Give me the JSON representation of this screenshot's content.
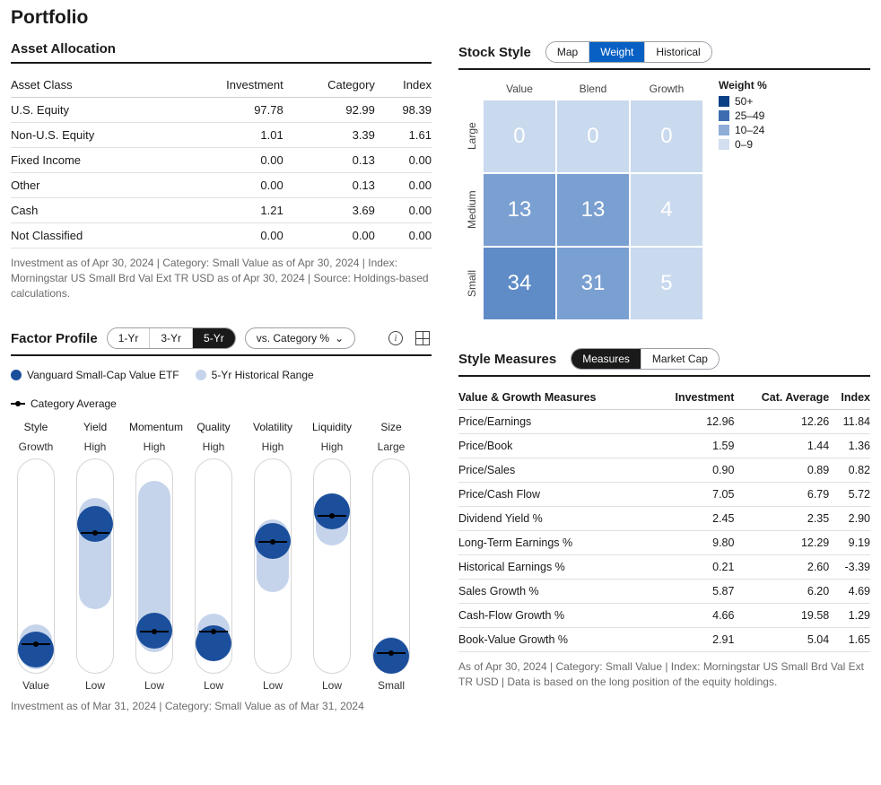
{
  "title": "Portfolio",
  "asset_allocation": {
    "header": "Asset Allocation",
    "columns": [
      "Asset Class",
      "Investment",
      "Category",
      "Index"
    ],
    "rows": [
      {
        "label": "U.S. Equity",
        "inv": "97.78",
        "cat": "92.99",
        "idx": "98.39"
      },
      {
        "label": "Non-U.S. Equity",
        "inv": "1.01",
        "cat": "3.39",
        "idx": "1.61"
      },
      {
        "label": "Fixed Income",
        "inv": "0.00",
        "cat": "0.13",
        "idx": "0.00"
      },
      {
        "label": "Other",
        "inv": "0.00",
        "cat": "0.13",
        "idx": "0.00"
      },
      {
        "label": "Cash",
        "inv": "1.21",
        "cat": "3.69",
        "idx": "0.00"
      },
      {
        "label": "Not Classified",
        "inv": "0.00",
        "cat": "0.00",
        "idx": "0.00"
      }
    ],
    "footnote": "Investment as of Apr 30, 2024 | Category: Small Value as of Apr 30, 2024 | Index: Morningstar US Small Brd Val Ext TR USD as of Apr 30, 2024 | Source: Holdings-based calculations."
  },
  "stock_style": {
    "header": "Stock Style",
    "tabs": [
      "Map",
      "Weight",
      "Historical"
    ],
    "active_tab": 1,
    "col_labels": [
      "Value",
      "Blend",
      "Growth"
    ],
    "row_labels": [
      "Large",
      "Medium",
      "Small"
    ],
    "cells": [
      [
        0,
        0,
        0
      ],
      [
        13,
        13,
        4
      ],
      [
        34,
        31,
        5
      ]
    ],
    "cell_colors": [
      [
        "#c9d9ee",
        "#c9d9ee",
        "#c9d9ee"
      ],
      [
        "#7a9fd1",
        "#7a9fd1",
        "#c9d9ee"
      ],
      [
        "#5f8bc7",
        "#7a9fd1",
        "#c9d9ee"
      ]
    ],
    "legend_title": "Weight %",
    "legend": [
      {
        "label": "50+",
        "color": "#0b3f86"
      },
      {
        "label": "25–49",
        "color": "#3d6cb0"
      },
      {
        "label": "10–24",
        "color": "#8eadd7"
      },
      {
        "label": "0–9",
        "color": "#d2dff0"
      }
    ]
  },
  "factor_profile": {
    "header": "Factor Profile",
    "period_tabs": [
      "1-Yr",
      "3-Yr",
      "5-Yr"
    ],
    "period_active": 2,
    "dropdown": "vs. Category %",
    "legend_fund": "Vanguard Small-Cap Value ETF",
    "legend_range": "5-Yr Historical Range",
    "legend_cat": "Category Average",
    "factors": [
      {
        "name": "Style",
        "top": "Growth",
        "bottom": "Value",
        "range": [
          77,
          98
        ],
        "value": 89,
        "cat": 86
      },
      {
        "name": "Yield",
        "top": "High",
        "bottom": "Low",
        "range": [
          18,
          70
        ],
        "value": 30,
        "cat": 34
      },
      {
        "name": "Momentum",
        "top": "High",
        "bottom": "Low",
        "range": [
          10,
          90
        ],
        "value": 80,
        "cat": 80
      },
      {
        "name": "Quality",
        "top": "High",
        "bottom": "Low",
        "range": [
          72,
          94
        ],
        "value": 86,
        "cat": 80
      },
      {
        "name": "Volatility",
        "top": "High",
        "bottom": "Low",
        "range": [
          28,
          62
        ],
        "value": 38,
        "cat": 38
      },
      {
        "name": "Liquidity",
        "top": "High",
        "bottom": "Low",
        "range": [
          16,
          40
        ],
        "value": 24,
        "cat": 26
      },
      {
        "name": "Size",
        "top": "Large",
        "bottom": "Small",
        "range": [
          83,
          98
        ],
        "value": 92,
        "cat": 90
      }
    ],
    "footnote": "Investment as of Mar 31, 2024 | Category: Small Value as of Mar 31, 2024",
    "colors": {
      "fund": "#1b4f9c",
      "range": "#c6d4eb",
      "cat": "#000000"
    }
  },
  "style_measures": {
    "header": "Style Measures",
    "tabs": [
      "Measures",
      "Market Cap"
    ],
    "active_tab": 0,
    "columns": [
      "Value & Growth Measures",
      "Investment",
      "Cat. Average",
      "Index"
    ],
    "rows": [
      {
        "label": "Price/Earnings",
        "inv": "12.96",
        "cat": "12.26",
        "idx": "11.84"
      },
      {
        "label": "Price/Book",
        "inv": "1.59",
        "cat": "1.44",
        "idx": "1.36"
      },
      {
        "label": "Price/Sales",
        "inv": "0.90",
        "cat": "0.89",
        "idx": "0.82"
      },
      {
        "label": "Price/Cash Flow",
        "inv": "7.05",
        "cat": "6.79",
        "idx": "5.72"
      },
      {
        "label": "Dividend Yield %",
        "inv": "2.45",
        "cat": "2.35",
        "idx": "2.90"
      },
      {
        "label": "Long-Term Earnings %",
        "inv": "9.80",
        "cat": "12.29",
        "idx": "9.19"
      },
      {
        "label": "Historical Earnings %",
        "inv": "0.21",
        "cat": "2.60",
        "idx": "-3.39"
      },
      {
        "label": "Sales Growth %",
        "inv": "5.87",
        "cat": "6.20",
        "idx": "4.69"
      },
      {
        "label": "Cash-Flow Growth %",
        "inv": "4.66",
        "cat": "19.58",
        "idx": "1.29"
      },
      {
        "label": "Book-Value Growth %",
        "inv": "2.91",
        "cat": "5.04",
        "idx": "1.65"
      }
    ],
    "footnote": "As of Apr 30, 2024 | Category: Small Value | Index: Morningstar US Small Brd Val Ext TR USD | Data is based on the long position of the equity holdings."
  }
}
